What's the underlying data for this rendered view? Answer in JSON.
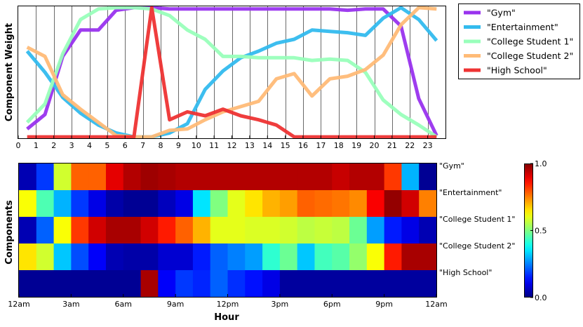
{
  "chart_data": [
    {
      "type": "line",
      "ylabel": "Component Weight",
      "xlim": [
        0,
        24
      ],
      "ylim": [
        0,
        1
      ],
      "x_ticks": [
        "0",
        "1",
        "2",
        "3",
        "4",
        "5",
        "6",
        "7",
        "8",
        "9",
        "10",
        "11",
        "12",
        "13",
        "14",
        "15",
        "16",
        "17",
        "18",
        "19",
        "20",
        "21",
        "22",
        "23"
      ],
      "x": [
        0.5,
        1.5,
        2.5,
        3.5,
        4.5,
        5.5,
        6.5,
        7.5,
        8.5,
        9.5,
        10.5,
        11.5,
        12.5,
        13.5,
        14.5,
        15.5,
        16.5,
        17.5,
        18.5,
        19.5,
        20.5,
        21.5,
        22.5,
        23.5
      ],
      "grid": "vertical",
      "legend_position": "outside-right",
      "series": [
        {
          "name": "\"Gym\"",
          "color": "#9933ee",
          "values": [
            0.07,
            0.18,
            0.62,
            0.82,
            0.82,
            0.97,
            0.99,
            0.99,
            0.98,
            0.98,
            0.98,
            0.98,
            0.98,
            0.98,
            0.98,
            0.98,
            0.98,
            0.98,
            0.97,
            0.98,
            0.98,
            0.85,
            0.3,
            0.02
          ]
        },
        {
          "name": "\"Entertainment\"",
          "color": "#33bbee",
          "values": [
            0.66,
            0.5,
            0.31,
            0.19,
            0.1,
            0.04,
            0.01,
            0.01,
            0.04,
            0.11,
            0.37,
            0.51,
            0.61,
            0.66,
            0.72,
            0.75,
            0.82,
            0.81,
            0.8,
            0.78,
            0.91,
            0.99,
            0.9,
            0.74
          ]
        },
        {
          "name": "\"College Student 1\"",
          "color": "#99ffbb",
          "values": [
            0.12,
            0.26,
            0.64,
            0.9,
            0.98,
            0.99,
            0.99,
            0.98,
            0.93,
            0.82,
            0.75,
            0.62,
            0.62,
            0.61,
            0.61,
            0.61,
            0.59,
            0.6,
            0.59,
            0.5,
            0.29,
            0.18,
            0.1,
            0.01
          ]
        },
        {
          "name": "\"College Student 2\"",
          "color": "#ffbb77",
          "values": [
            0.69,
            0.62,
            0.33,
            0.22,
            0.12,
            0.02,
            0.01,
            0.01,
            0.06,
            0.07,
            0.14,
            0.2,
            0.24,
            0.28,
            0.45,
            0.49,
            0.32,
            0.45,
            0.47,
            0.52,
            0.63,
            0.86,
            0.99,
            0.98
          ]
        },
        {
          "name": "\"High School\"",
          "color": "#ee3333",
          "values": [
            0.01,
            0.01,
            0.01,
            0.01,
            0.01,
            0.01,
            0.01,
            0.99,
            0.14,
            0.2,
            0.17,
            0.22,
            0.17,
            0.14,
            0.1,
            0.01,
            0.01,
            0.01,
            0.01,
            0.01,
            0.01,
            0.01,
            0.01,
            0.01
          ]
        }
      ]
    },
    {
      "type": "heatmap",
      "xlabel": "Hour",
      "ylabel": "Components",
      "x_ticks": [
        "12am",
        "3am",
        "6am",
        "9am",
        "12pm",
        "3pm",
        "6pm",
        "9pm",
        "12am"
      ],
      "rows": [
        "\"Gym\"",
        "\"Entertainment\"",
        "\"College Student 1\"",
        "\"College Student 2\"",
        "\"High School\""
      ],
      "colorbar": {
        "min": 0.0,
        "max": 1.0,
        "ticks": [
          "0.0",
          "0.5",
          "1.0"
        ]
      },
      "values": [
        [
          0.05,
          0.18,
          0.58,
          0.78,
          0.78,
          0.9,
          0.95,
          0.97,
          0.96,
          0.95,
          0.95,
          0.95,
          0.95,
          0.95,
          0.95,
          0.95,
          0.95,
          0.95,
          0.93,
          0.95,
          0.95,
          0.82,
          0.3,
          0.02
        ],
        [
          0.62,
          0.45,
          0.3,
          0.18,
          0.1,
          0.04,
          0.02,
          0.02,
          0.06,
          0.1,
          0.35,
          0.5,
          0.6,
          0.65,
          0.7,
          0.72,
          0.78,
          0.77,
          0.76,
          0.74,
          0.88,
          0.98,
          0.92,
          0.75
        ],
        [
          0.05,
          0.22,
          0.62,
          0.82,
          0.92,
          0.96,
          0.96,
          0.92,
          0.85,
          0.78,
          0.7,
          0.6,
          0.6,
          0.59,
          0.59,
          0.58,
          0.56,
          0.57,
          0.56,
          0.48,
          0.28,
          0.15,
          0.1,
          0.05
        ],
        [
          0.65,
          0.58,
          0.32,
          0.2,
          0.12,
          0.05,
          0.04,
          0.04,
          0.08,
          0.08,
          0.15,
          0.22,
          0.25,
          0.28,
          0.42,
          0.48,
          0.32,
          0.44,
          0.46,
          0.52,
          0.62,
          0.85,
          0.96,
          0.96
        ],
        [
          0.02,
          0.02,
          0.02,
          0.02,
          0.02,
          0.02,
          0.02,
          0.96,
          0.12,
          0.18,
          0.16,
          0.22,
          0.17,
          0.14,
          0.1,
          0.03,
          0.03,
          0.03,
          0.03,
          0.03,
          0.03,
          0.03,
          0.03,
          0.03
        ]
      ]
    }
  ]
}
